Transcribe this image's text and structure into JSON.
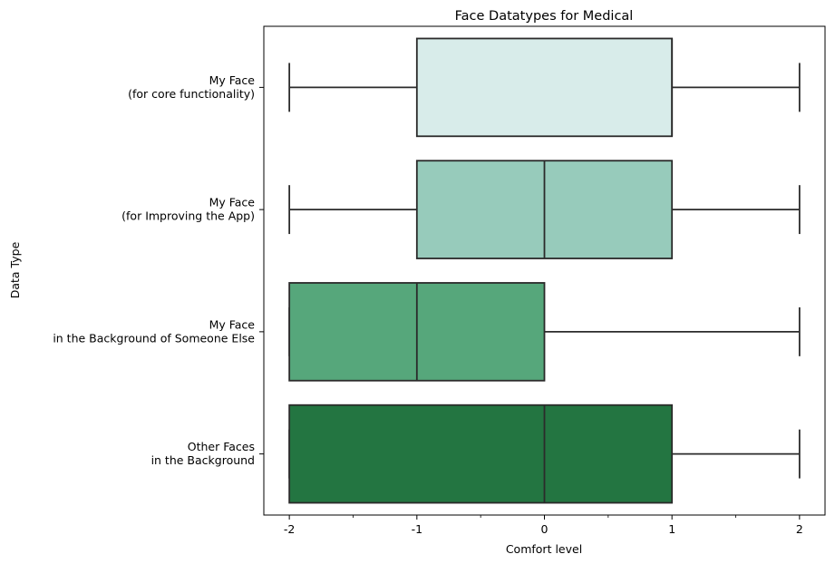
{
  "chart_data": {
    "type": "boxplot",
    "orientation": "horizontal",
    "title": "Face Datatypes for Medical",
    "xlabel": "Comfort level",
    "ylabel": "Data Type",
    "xlim": [
      -2.2,
      2.2
    ],
    "x_ticks": [
      -2,
      -1,
      0,
      1,
      2
    ],
    "x_tick_labels": [
      "-2",
      "-1",
      "0",
      "1",
      "2"
    ],
    "grid": false,
    "categories": [
      {
        "lines": [
          "My Face",
          "(for core functionality)"
        ],
        "whisker_low": -2,
        "q1": -1,
        "median": 1,
        "q3": 1,
        "whisker_high": 2,
        "color": "#d8ecea"
      },
      {
        "lines": [
          "My Face",
          "(for Improving the App)"
        ],
        "whisker_low": -2,
        "q1": -1,
        "median": 0,
        "q3": 1,
        "whisker_high": 2,
        "color": "#97cbbb"
      },
      {
        "lines": [
          "My Face",
          "in the Background of Someone Else"
        ],
        "whisker_low": -2,
        "q1": -2,
        "median": -1,
        "q3": 0,
        "whisker_high": 2,
        "color": "#56a77b"
      },
      {
        "lines": [
          "Other Faces",
          "in the Background"
        ],
        "whisker_low": -2,
        "q1": -2,
        "median": 0,
        "q3": 1,
        "whisker_high": 2,
        "color": "#237541"
      }
    ],
    "line_color": "#2b2b2b"
  }
}
